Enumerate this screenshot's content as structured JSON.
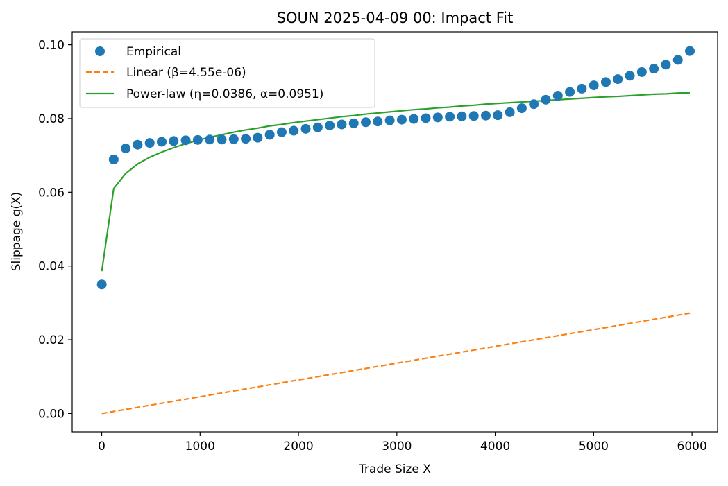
{
  "chart_data": {
    "type": "line",
    "title": "SOUN 2025-04-09 00: Impact Fit",
    "xlabel": "Trade Size X",
    "ylabel": "Slippage g(X)",
    "xlim": [
      -300,
      6260
    ],
    "ylim": [
      -0.005,
      0.1035
    ],
    "xticks": [
      0,
      1000,
      2000,
      3000,
      4000,
      5000,
      6000
    ],
    "xtick_labels": [
      "0",
      "1000",
      "2000",
      "3000",
      "4000",
      "5000",
      "6000"
    ],
    "yticks": [
      0,
      0.02,
      0.04,
      0.06,
      0.08,
      0.1
    ],
    "ytick_labels": [
      "0.00",
      "0.02",
      "0.04",
      "0.06",
      "0.08",
      "0.10"
    ],
    "grid": false,
    "legend_position": "upper-left",
    "series": [
      {
        "name": "Empirical",
        "style": "markers",
        "color": "#1f77b4",
        "x": [
          1,
          122,
          244,
          366,
          488,
          610,
          732,
          854,
          976,
          1098,
          1220,
          1342,
          1464,
          1586,
          1708,
          1830,
          1952,
          2074,
          2196,
          2318,
          2440,
          2562,
          2684,
          2806,
          2928,
          3050,
          3172,
          3294,
          3416,
          3538,
          3660,
          3782,
          3904,
          4026,
          4148,
          4270,
          4392,
          4514,
          4636,
          4758,
          4880,
          5002,
          5124,
          5246,
          5368,
          5490,
          5612,
          5734,
          5856,
          5978
        ],
        "y": [
          0.035,
          0.0689,
          0.0719,
          0.0729,
          0.0734,
          0.0737,
          0.0739,
          0.0741,
          0.0742,
          0.0743,
          0.0743,
          0.0744,
          0.0745,
          0.0748,
          0.0756,
          0.0763,
          0.0767,
          0.0772,
          0.0776,
          0.0781,
          0.0784,
          0.0787,
          0.079,
          0.0792,
          0.0795,
          0.0797,
          0.0799,
          0.0801,
          0.0803,
          0.0805,
          0.0806,
          0.0807,
          0.0808,
          0.0809,
          0.0817,
          0.0828,
          0.0839,
          0.0851,
          0.0862,
          0.0872,
          0.0881,
          0.089,
          0.0899,
          0.0907,
          0.0916,
          0.0926,
          0.0935,
          0.0946,
          0.0959,
          0.0983
        ]
      },
      {
        "name": "Linear (β=4.55e-06)",
        "style": "dashed-line",
        "color": "#ff7f0e",
        "x": [
          1,
          5978
        ],
        "y": [
          0.0,
          0.0272
        ]
      },
      {
        "name": "Power-law (η=0.0386, α=0.0951)",
        "style": "line",
        "color": "#2ca02c",
        "x": [
          1,
          122,
          244,
          366,
          488,
          610,
          732,
          854,
          976,
          1098,
          1220,
          1342,
          1464,
          1586,
          1708,
          1830,
          1952,
          2074,
          2196,
          2318,
          2440,
          2562,
          2684,
          2806,
          2928,
          3050,
          3172,
          3294,
          3416,
          3538,
          3660,
          3782,
          3904,
          4026,
          4148,
          4270,
          4392,
          4514,
          4636,
          4758,
          4880,
          5002,
          5124,
          5246,
          5368,
          5490,
          5612,
          5734,
          5856,
          5978
        ],
        "y": [
          0.0386,
          0.061,
          0.0651,
          0.0677,
          0.0695,
          0.0709,
          0.0721,
          0.0732,
          0.0741,
          0.0749,
          0.0756,
          0.0763,
          0.0769,
          0.0774,
          0.078,
          0.0784,
          0.0789,
          0.0793,
          0.0797,
          0.0801,
          0.0805,
          0.0808,
          0.0812,
          0.0815,
          0.0818,
          0.0821,
          0.0824,
          0.0826,
          0.0829,
          0.0831,
          0.0834,
          0.0836,
          0.0839,
          0.0841,
          0.0843,
          0.0845,
          0.0847,
          0.0849,
          0.0851,
          0.0853,
          0.0855,
          0.0857,
          0.0859,
          0.086,
          0.0862,
          0.0864,
          0.0866,
          0.0867,
          0.0869,
          0.087
        ]
      }
    ]
  }
}
